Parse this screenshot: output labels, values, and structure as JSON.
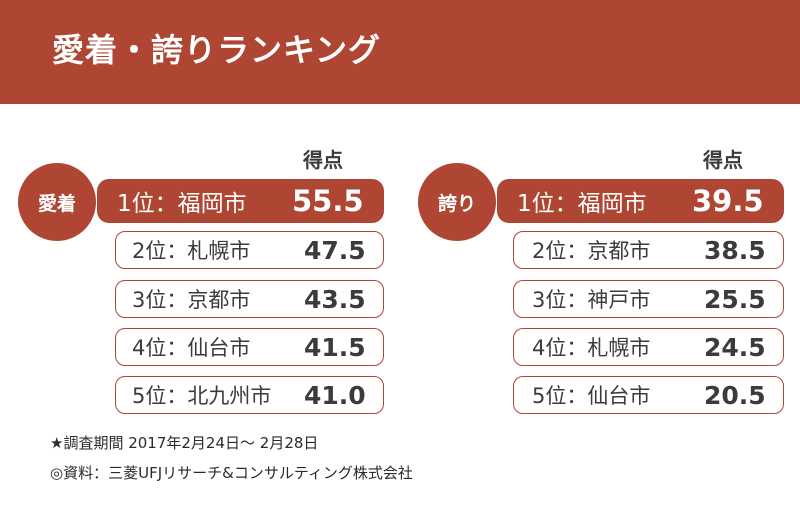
{
  "banner": {
    "title": "愛着・誇りランキング"
  },
  "score_header": "得点",
  "attachment": {
    "badge": "愛着",
    "rows": [
      {
        "label": "1位：福岡市",
        "score": "55.5"
      },
      {
        "label": "2位：札幌市",
        "score": "47.5"
      },
      {
        "label": "3位：京都市",
        "score": "43.5"
      },
      {
        "label": "4位：仙台市",
        "score": "41.5"
      },
      {
        "label": "5位：北九州市",
        "score": "41.0"
      }
    ]
  },
  "pride": {
    "badge": "誇り",
    "rows": [
      {
        "label": "1位：福岡市",
        "score": "39.5"
      },
      {
        "label": "2位：京都市",
        "score": "38.5"
      },
      {
        "label": "3位：神戸市",
        "score": "25.5"
      },
      {
        "label": "4位：札幌市",
        "score": "24.5"
      },
      {
        "label": "5位：仙台市",
        "score": "20.5"
      }
    ]
  },
  "footnotes": {
    "period": "★調査期間 2017年2月24日～ 2月28日",
    "source": "◎資料：三菱UFJリサーチ&コンサルティング株式会社"
  },
  "colors": {
    "accent": "#ae4633",
    "text": "#3b3b3b",
    "background": "#ffffff"
  }
}
